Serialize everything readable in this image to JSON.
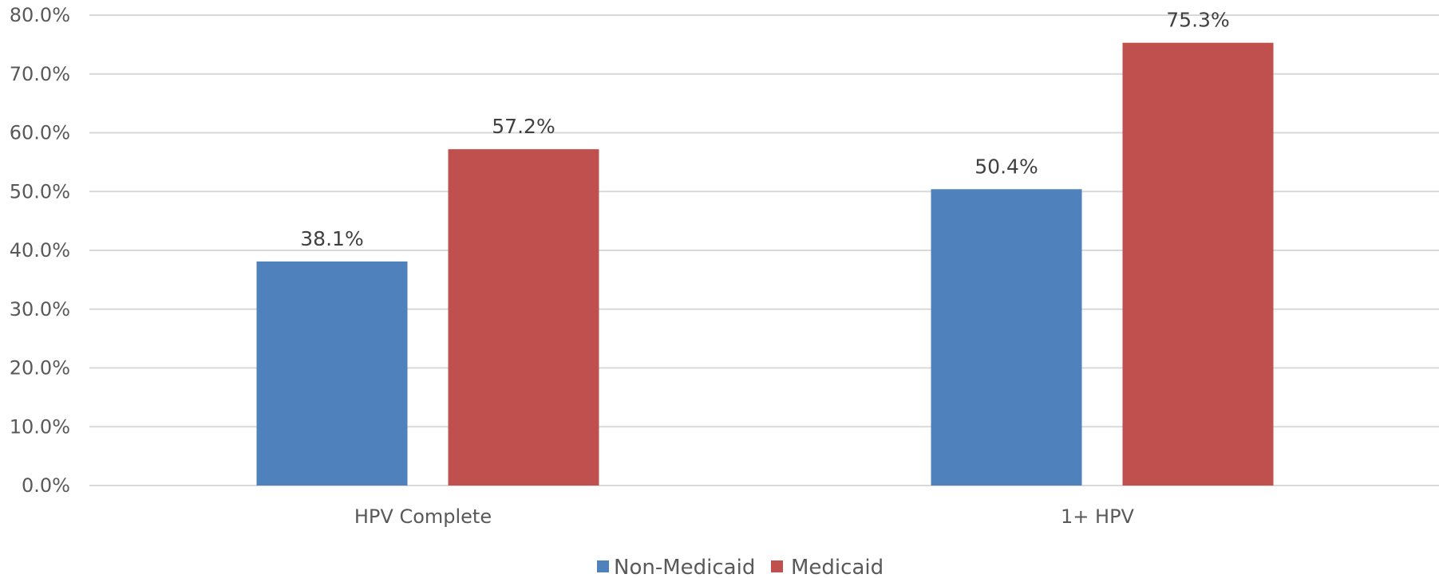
{
  "chart_data": {
    "type": "bar",
    "title": "",
    "xlabel": "",
    "ylabel": "",
    "categories": [
      "HPV Complete",
      "1+ HPV"
    ],
    "series": [
      {
        "name": "Non-Medicaid",
        "values": [
          38.1,
          50.4
        ],
        "color": "#4f81bd"
      },
      {
        "name": "Medicaid",
        "values": [
          57.2,
          75.3
        ],
        "color": "#c0504d"
      }
    ],
    "data_labels": [
      [
        "38.1%",
        "50.4%"
      ],
      [
        "57.2%",
        "75.3%"
      ]
    ],
    "ylim": [
      0,
      80
    ],
    "y_ticks": [
      0,
      10,
      20,
      30,
      40,
      50,
      60,
      70,
      80
    ],
    "y_tick_labels": [
      "0.0%",
      "10.0%",
      "20.0%",
      "30.0%",
      "40.0%",
      "50.0%",
      "60.0%",
      "70.0%",
      "80.0%"
    ],
    "grid": true,
    "legend_position": "bottom-center"
  }
}
